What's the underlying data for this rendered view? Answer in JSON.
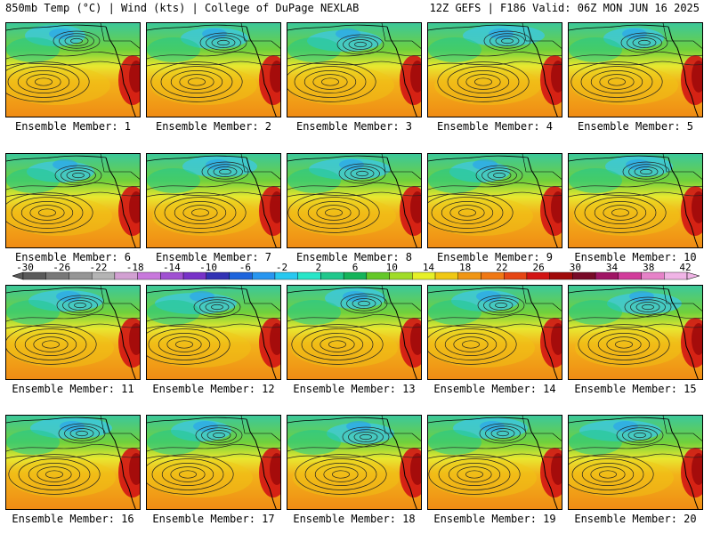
{
  "header": {
    "left": "850mb Temp (°C) | Wind (kts) | College of DuPage NEXLAB",
    "right": "12Z GEFS | F186 Valid: 06Z MON JUN 16 2025"
  },
  "panels": [
    {
      "label": "Ensemble Member: 1"
    },
    {
      "label": "Ensemble Member: 2"
    },
    {
      "label": "Ensemble Member: 3"
    },
    {
      "label": "Ensemble Member: 4"
    },
    {
      "label": "Ensemble Member: 5"
    },
    {
      "label": "Ensemble Member: 6"
    },
    {
      "label": "Ensemble Member: 7"
    },
    {
      "label": "Ensemble Member: 8"
    },
    {
      "label": "Ensemble Member: 9"
    },
    {
      "label": "Ensemble Member: 10"
    },
    {
      "label": "Ensemble Member: 11"
    },
    {
      "label": "Ensemble Member: 12"
    },
    {
      "label": "Ensemble Member: 13"
    },
    {
      "label": "Ensemble Member: 14"
    },
    {
      "label": "Ensemble Member: 15"
    },
    {
      "label": "Ensemble Member: 16"
    },
    {
      "label": "Ensemble Member: 17"
    },
    {
      "label": "Ensemble Member: 18"
    },
    {
      "label": "Ensemble Member: 19"
    },
    {
      "label": "Ensemble Member: 20"
    }
  ],
  "colorbar": {
    "labels": [
      "-30",
      "-26",
      "-22",
      "-18",
      "-14",
      "-10",
      "-6",
      "-2",
      "2",
      "6",
      "10",
      "14",
      "18",
      "22",
      "26",
      "30",
      "34",
      "38",
      "42"
    ],
    "colors": [
      "#5a5a5a",
      "#787878",
      "#969696",
      "#b4b4b4",
      "#d2a0d2",
      "#c878dc",
      "#a050d2",
      "#7832c8",
      "#3232b4",
      "#1e64dc",
      "#2896f0",
      "#28c8f0",
      "#28e6c8",
      "#20c88c",
      "#14b45a",
      "#64c828",
      "#a0dc28",
      "#e6f028",
      "#f0c814",
      "#f09614",
      "#f07814",
      "#e64614",
      "#d21414",
      "#a00a0a",
      "#780a28",
      "#a01464",
      "#d23c9b",
      "#e682c8",
      "#f0b4e6"
    ]
  }
}
